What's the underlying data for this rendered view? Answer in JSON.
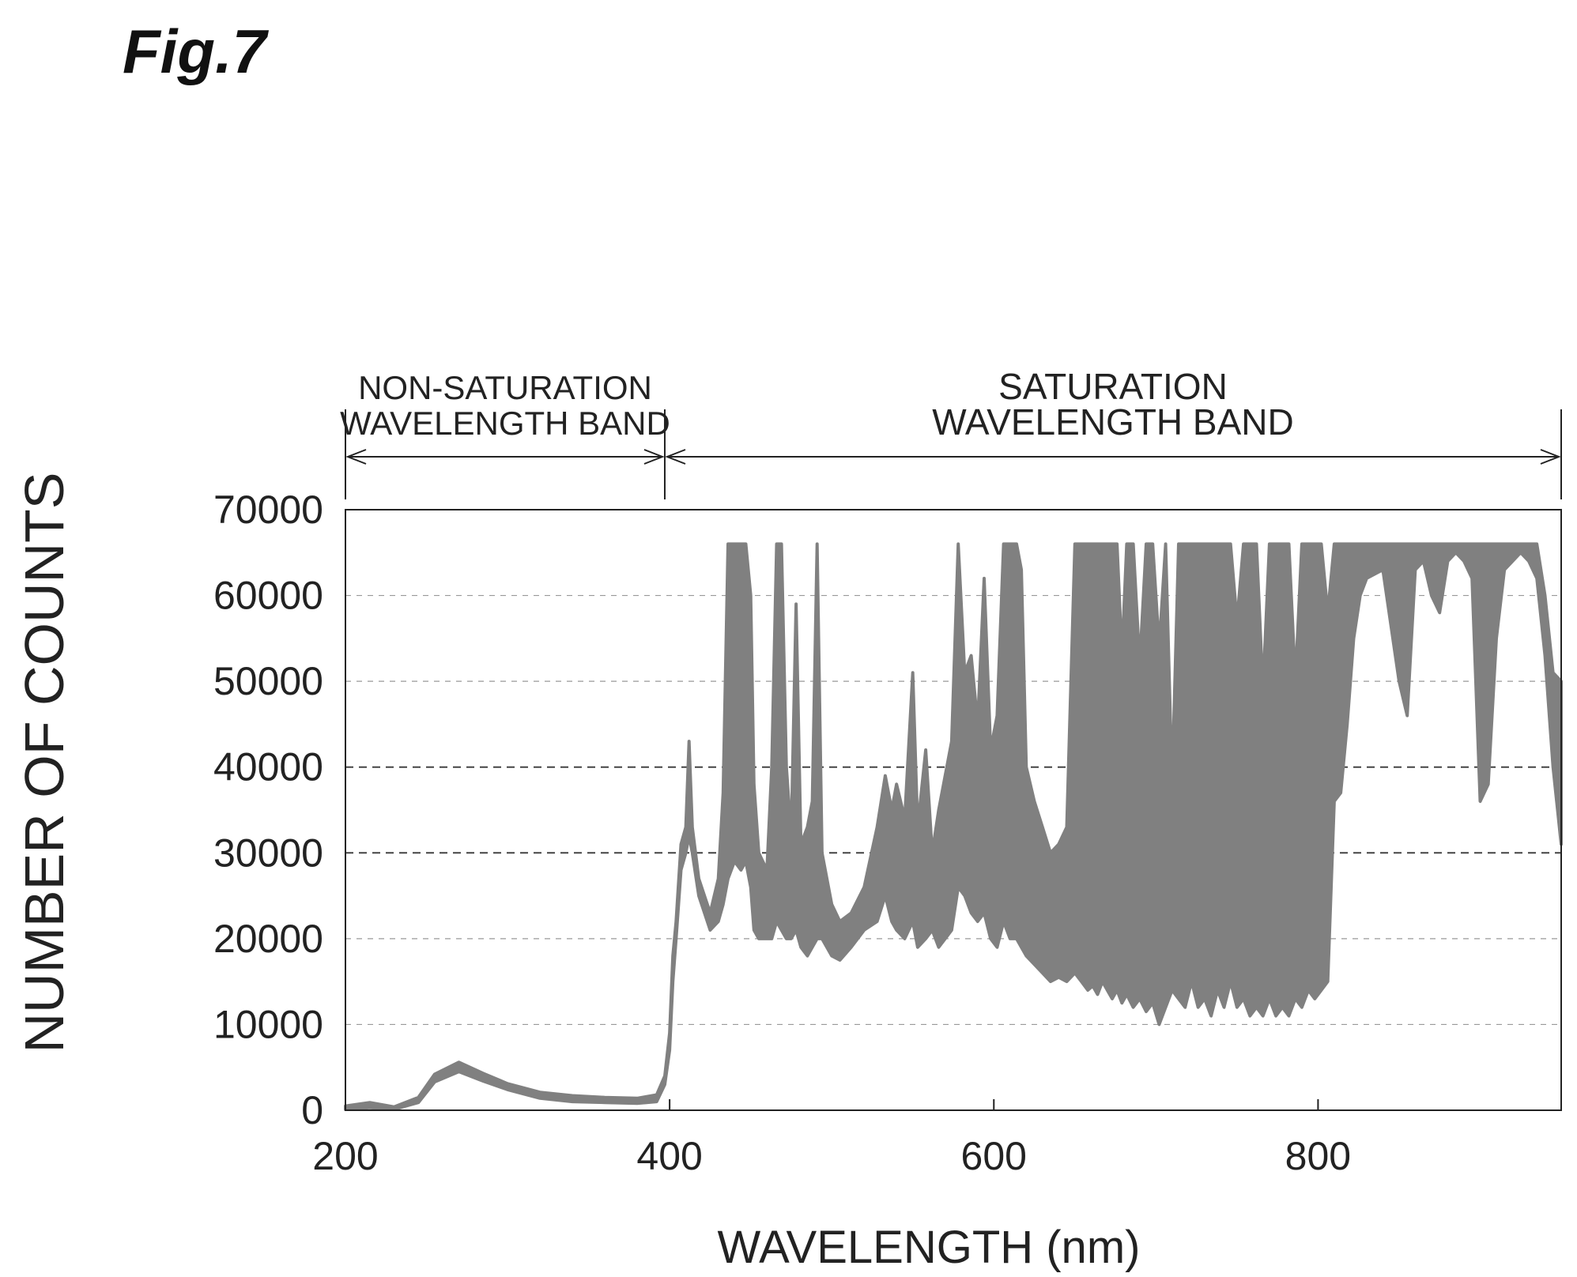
{
  "figure_label": "Fig.7",
  "chart_data": {
    "type": "line",
    "title": "",
    "xlabel": "WAVELENGTH (nm)",
    "ylabel": "NUMBER OF COUNTS",
    "xlim": [
      200,
      950
    ],
    "ylim": [
      0,
      70000
    ],
    "xticks": [
      200,
      400,
      600,
      800
    ],
    "yticks": [
      0,
      10000,
      20000,
      30000,
      40000,
      50000,
      60000,
      70000
    ],
    "xtick_labels": [
      "200",
      "400",
      "600",
      "800"
    ],
    "ytick_labels": [
      "0",
      "10000",
      "20000",
      "30000",
      "40000",
      "50000",
      "60000",
      "70000"
    ],
    "grid": true,
    "line_color": "#808080",
    "band_boundary_x": 397,
    "bands": [
      {
        "line1": "NON-SATURATION",
        "line2": "WAVELENGTH BAND",
        "x_start": 200,
        "x_end": 397
      },
      {
        "line1": "SATURATION",
        "line2": "WAVELENGTH BAND",
        "x_start": 397,
        "x_end": 950
      }
    ],
    "series": [
      {
        "upper": [
          [
            200,
            500
          ],
          [
            215,
            900
          ],
          [
            230,
            400
          ],
          [
            245,
            1500
          ],
          [
            255,
            4200
          ],
          [
            270,
            5600
          ],
          [
            285,
            4300
          ],
          [
            300,
            3100
          ],
          [
            320,
            2100
          ],
          [
            340,
            1700
          ],
          [
            360,
            1500
          ],
          [
            380,
            1400
          ],
          [
            392,
            1800
          ],
          [
            397,
            4000
          ],
          [
            400,
            9000
          ],
          [
            402,
            18000
          ],
          [
            404,
            22000
          ],
          [
            407,
            31000
          ],
          [
            410,
            33000
          ],
          [
            412,
            43000
          ],
          [
            414,
            33000
          ],
          [
            418,
            27000
          ],
          [
            425,
            23000
          ],
          [
            430,
            27000
          ],
          [
            433,
            37000
          ],
          [
            436,
            66000
          ],
          [
            440,
            66000
          ],
          [
            444,
            66000
          ],
          [
            447,
            66000
          ],
          [
            450,
            60000
          ],
          [
            452,
            38000
          ],
          [
            455,
            30000
          ],
          [
            460,
            28000
          ],
          [
            463,
            40000
          ],
          [
            466,
            66000
          ],
          [
            469,
            66000
          ],
          [
            472,
            40000
          ],
          [
            475,
            32000
          ],
          [
            478,
            59000
          ],
          [
            481,
            31000
          ],
          [
            485,
            33000
          ],
          [
            488,
            36000
          ],
          [
            491,
            66000
          ],
          [
            494,
            30000
          ],
          [
            500,
            24000
          ],
          [
            505,
            22000
          ],
          [
            512,
            23000
          ],
          [
            520,
            26000
          ],
          [
            528,
            33000
          ],
          [
            533,
            39000
          ],
          [
            537,
            35000
          ],
          [
            540,
            38000
          ],
          [
            545,
            34000
          ],
          [
            550,
            51000
          ],
          [
            553,
            33000
          ],
          [
            558,
            42000
          ],
          [
            562,
            30000
          ],
          [
            566,
            35000
          ],
          [
            570,
            39000
          ],
          [
            574,
            43000
          ],
          [
            578,
            66000
          ],
          [
            582,
            51000
          ],
          [
            586,
            53000
          ],
          [
            590,
            45000
          ],
          [
            594,
            62000
          ],
          [
            598,
            42000
          ],
          [
            602,
            46000
          ],
          [
            606,
            66000
          ],
          [
            610,
            66000
          ],
          [
            614,
            66000
          ],
          [
            617,
            63000
          ],
          [
            620,
            40000
          ],
          [
            625,
            36000
          ],
          [
            630,
            33000
          ],
          [
            635,
            30000
          ],
          [
            640,
            31000
          ],
          [
            645,
            33000
          ],
          [
            650,
            66000
          ],
          [
            654,
            66000
          ],
          [
            658,
            66000
          ],
          [
            661,
            66000
          ],
          [
            664,
            66000
          ],
          [
            667,
            66000
          ],
          [
            670,
            66000
          ],
          [
            673,
            66000
          ],
          [
            676,
            66000
          ],
          [
            679,
            53000
          ],
          [
            682,
            66000
          ],
          [
            686,
            66000
          ],
          [
            690,
            52000
          ],
          [
            694,
            66000
          ],
          [
            698,
            66000
          ],
          [
            702,
            54000
          ],
          [
            706,
            66000
          ],
          [
            710,
            38000
          ],
          [
            714,
            66000
          ],
          [
            718,
            66000
          ],
          [
            722,
            66000
          ],
          [
            726,
            66000
          ],
          [
            730,
            66000
          ],
          [
            734,
            66000
          ],
          [
            738,
            66000
          ],
          [
            742,
            66000
          ],
          [
            746,
            66000
          ],
          [
            750,
            57000
          ],
          [
            754,
            66000
          ],
          [
            758,
            66000
          ],
          [
            762,
            66000
          ],
          [
            766,
            49000
          ],
          [
            770,
            66000
          ],
          [
            774,
            66000
          ],
          [
            778,
            66000
          ],
          [
            782,
            66000
          ],
          [
            786,
            50000
          ],
          [
            790,
            66000
          ],
          [
            794,
            66000
          ],
          [
            798,
            66000
          ],
          [
            802,
            66000
          ],
          [
            806,
            58000
          ],
          [
            810,
            66000
          ],
          [
            814,
            66000
          ],
          [
            818,
            66000
          ],
          [
            822,
            66000
          ],
          [
            826,
            66000
          ],
          [
            830,
            66000
          ],
          [
            840,
            66000
          ],
          [
            850,
            66000
          ],
          [
            855,
            66000
          ],
          [
            860,
            66000
          ],
          [
            865,
            66000
          ],
          [
            870,
            66000
          ],
          [
            875,
            66000
          ],
          [
            880,
            66000
          ],
          [
            885,
            66000
          ],
          [
            890,
            66000
          ],
          [
            895,
            66000
          ],
          [
            900,
            66000
          ],
          [
            905,
            66000
          ],
          [
            910,
            66000
          ],
          [
            915,
            66000
          ],
          [
            920,
            66000
          ],
          [
            925,
            66000
          ],
          [
            930,
            66000
          ],
          [
            935,
            66000
          ],
          [
            940,
            60000
          ],
          [
            945,
            51000
          ],
          [
            950,
            50000
          ]
        ],
        "lower": [
          [
            200,
            100
          ],
          [
            215,
            300
          ],
          [
            230,
            100
          ],
          [
            245,
            900
          ],
          [
            255,
            3300
          ],
          [
            270,
            4500
          ],
          [
            285,
            3400
          ],
          [
            300,
            2400
          ],
          [
            320,
            1400
          ],
          [
            340,
            1000
          ],
          [
            360,
            900
          ],
          [
            380,
            800
          ],
          [
            392,
            1000
          ],
          [
            397,
            3000
          ],
          [
            400,
            7000
          ],
          [
            402,
            15000
          ],
          [
            404,
            20000
          ],
          [
            407,
            28000
          ],
          [
            410,
            30000
          ],
          [
            412,
            32000
          ],
          [
            414,
            30000
          ],
          [
            418,
            25000
          ],
          [
            425,
            21000
          ],
          [
            430,
            22000
          ],
          [
            433,
            24000
          ],
          [
            436,
            27000
          ],
          [
            440,
            29000
          ],
          [
            444,
            28000
          ],
          [
            447,
            29000
          ],
          [
            450,
            26000
          ],
          [
            452,
            21000
          ],
          [
            455,
            20000
          ],
          [
            460,
            20000
          ],
          [
            463,
            20000
          ],
          [
            466,
            22000
          ],
          [
            469,
            21000
          ],
          [
            472,
            20000
          ],
          [
            475,
            20000
          ],
          [
            478,
            21000
          ],
          [
            481,
            19000
          ],
          [
            485,
            18000
          ],
          [
            488,
            19000
          ],
          [
            491,
            20000
          ],
          [
            494,
            20000
          ],
          [
            500,
            18000
          ],
          [
            505,
            17500
          ],
          [
            512,
            19000
          ],
          [
            520,
            21000
          ],
          [
            528,
            22000
          ],
          [
            533,
            25000
          ],
          [
            537,
            22000
          ],
          [
            540,
            21000
          ],
          [
            545,
            20000
          ],
          [
            550,
            22000
          ],
          [
            553,
            19000
          ],
          [
            558,
            20000
          ],
          [
            562,
            21000
          ],
          [
            566,
            19000
          ],
          [
            570,
            20000
          ],
          [
            574,
            21000
          ],
          [
            578,
            26000
          ],
          [
            582,
            25000
          ],
          [
            586,
            23000
          ],
          [
            590,
            22000
          ],
          [
            594,
            23000
          ],
          [
            598,
            20000
          ],
          [
            602,
            19000
          ],
          [
            606,
            22000
          ],
          [
            610,
            20000
          ],
          [
            614,
            20000
          ],
          [
            617,
            19000
          ],
          [
            620,
            18000
          ],
          [
            625,
            17000
          ],
          [
            630,
            16000
          ],
          [
            635,
            15000
          ],
          [
            640,
            15500
          ],
          [
            645,
            15000
          ],
          [
            650,
            16000
          ],
          [
            654,
            15000
          ],
          [
            658,
            14000
          ],
          [
            661,
            14500
          ],
          [
            664,
            13500
          ],
          [
            667,
            15000
          ],
          [
            670,
            14000
          ],
          [
            673,
            13000
          ],
          [
            676,
            14000
          ],
          [
            679,
            12500
          ],
          [
            682,
            13500
          ],
          [
            686,
            12000
          ],
          [
            690,
            13000
          ],
          [
            694,
            11500
          ],
          [
            698,
            12500
          ],
          [
            702,
            10000
          ],
          [
            706,
            12000
          ],
          [
            710,
            14000
          ],
          [
            714,
            13000
          ],
          [
            718,
            12000
          ],
          [
            722,
            15000
          ],
          [
            726,
            12000
          ],
          [
            730,
            13000
          ],
          [
            734,
            11000
          ],
          [
            738,
            14000
          ],
          [
            742,
            12000
          ],
          [
            746,
            15000
          ],
          [
            750,
            12000
          ],
          [
            754,
            13000
          ],
          [
            758,
            11000
          ],
          [
            762,
            12000
          ],
          [
            766,
            11000
          ],
          [
            770,
            13000
          ],
          [
            774,
            11000
          ],
          [
            778,
            12000
          ],
          [
            782,
            11000
          ],
          [
            786,
            13000
          ],
          [
            790,
            12000
          ],
          [
            794,
            14000
          ],
          [
            798,
            13000
          ],
          [
            802,
            14000
          ],
          [
            806,
            15000
          ],
          [
            810,
            36000
          ],
          [
            814,
            37000
          ],
          [
            818,
            45000
          ],
          [
            822,
            55000
          ],
          [
            826,
            60000
          ],
          [
            830,
            62000
          ],
          [
            840,
            63000
          ],
          [
            850,
            50000
          ],
          [
            855,
            46000
          ],
          [
            860,
            63000
          ],
          [
            865,
            64000
          ],
          [
            870,
            60000
          ],
          [
            875,
            58000
          ],
          [
            880,
            64000
          ],
          [
            885,
            65000
          ],
          [
            890,
            64000
          ],
          [
            895,
            62000
          ],
          [
            900,
            36000
          ],
          [
            905,
            38000
          ],
          [
            910,
            55000
          ],
          [
            915,
            63000
          ],
          [
            920,
            64000
          ],
          [
            925,
            65000
          ],
          [
            930,
            64000
          ],
          [
            935,
            62000
          ],
          [
            940,
            53000
          ],
          [
            945,
            40000
          ],
          [
            950,
            31000
          ]
        ]
      }
    ]
  }
}
